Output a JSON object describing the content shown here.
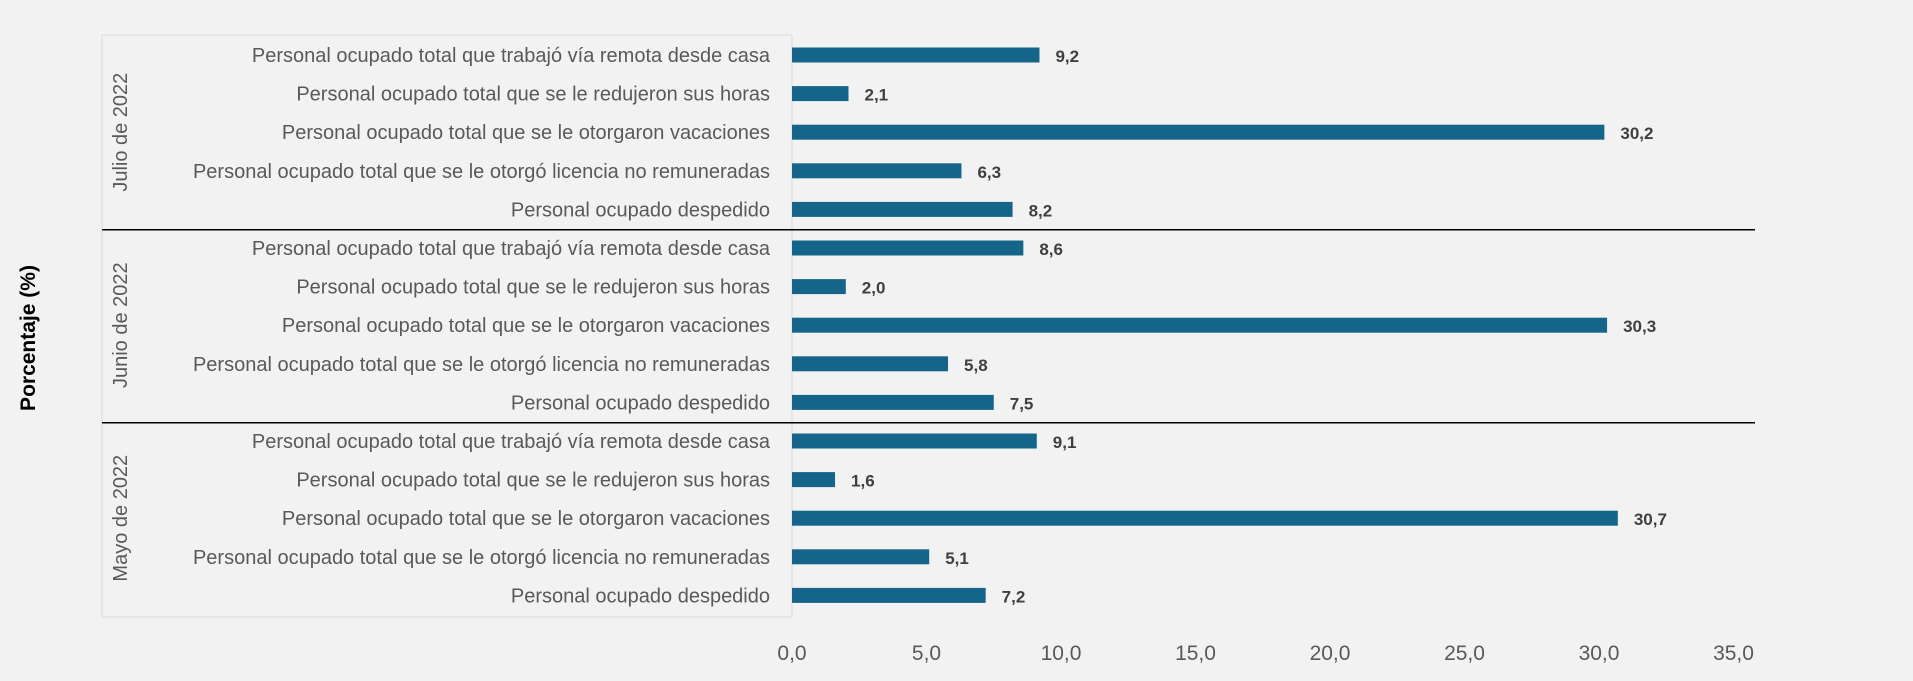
{
  "chart_data": {
    "type": "bar",
    "orientation": "horizontal",
    "ylabel": "Porcentaje (%)",
    "xlim": [
      0,
      35
    ],
    "x_ticks": [
      "0,0",
      "5,0",
      "10,0",
      "15,0",
      "20,0",
      "25,0",
      "30,0",
      "35,0"
    ],
    "grid": false,
    "legend": "none",
    "colors": {
      "bar": "#15658a",
      "background": "#f2f2f2",
      "separator": "#000000"
    },
    "groups": [
      {
        "name": "Julio de 2022",
        "categories": [
          "Personal ocupado total que trabajó vía remota desde casa",
          "Personal ocupado total que se le redujeron sus horas",
          "Personal ocupado total que se le otorgaron vacaciones",
          "Personal ocupado total que se le otorgó licencia no remuneradas",
          "Personal ocupado despedido"
        ],
        "values": [
          9.2,
          2.1,
          30.2,
          6.3,
          8.2
        ],
        "value_labels": [
          "9,2",
          "2,1",
          "30,2",
          "6,3",
          "8,2"
        ]
      },
      {
        "name": "Junio de 2022",
        "categories": [
          "Personal ocupado total que trabajó vía remota desde casa",
          "Personal ocupado total que se le redujeron sus horas",
          "Personal ocupado total que se le otorgaron vacaciones",
          "Personal ocupado total que se le otorgó licencia no remuneradas",
          "Personal ocupado despedido"
        ],
        "values": [
          8.6,
          2.0,
          30.3,
          5.8,
          7.5
        ],
        "value_labels": [
          "8,6",
          "2,0",
          "30,3",
          "5,8",
          "7,5"
        ]
      },
      {
        "name": "Mayo de 2022",
        "categories": [
          "Personal ocupado total que trabajó vía remota desde casa",
          "Personal ocupado total que se le redujeron sus horas",
          "Personal ocupado total que se le otorgaron vacaciones",
          "Personal ocupado total que se le otorgó licencia no remuneradas",
          "Personal ocupado despedido"
        ],
        "values": [
          9.1,
          1.6,
          30.7,
          5.1,
          7.2
        ],
        "value_labels": [
          "9,1",
          "1,6",
          "30,7",
          "5,1",
          "7,2"
        ]
      }
    ]
  }
}
